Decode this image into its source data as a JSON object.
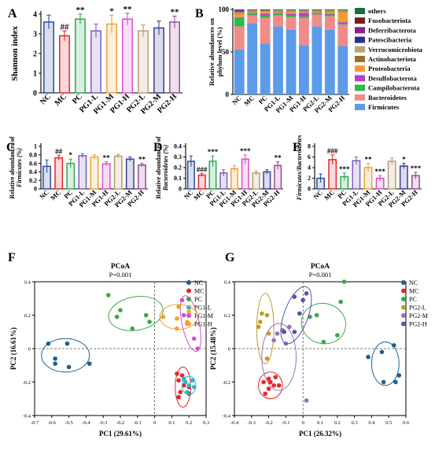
{
  "figure": {
    "panel_letters": [
      "A",
      "B",
      "C",
      "D",
      "E",
      "F",
      "G"
    ]
  },
  "groups": [
    "NC",
    "MC",
    "PC",
    "PG1-L",
    "PG1-M",
    "PG1-H",
    "PG2-L",
    "PG2-M",
    "PG2-H"
  ],
  "group_colors": {
    "NC": "#2b4f9e",
    "MC": "#e8262a",
    "PC": "#2fa84f",
    "PG1-L": "#7c5cbf",
    "PG1-M": "#e8a33b",
    "PG1-H": "#d84fc9",
    "PG2-L": "#b89a74",
    "PG2-M": "#3b3f8f",
    "PG2-H": "#9b4d96"
  },
  "chart_data": [
    {
      "id": "A",
      "type": "bar",
      "categories": [
        "NC",
        "MC",
        "PC",
        "PG1-L",
        "PG1-M",
        "PG1-H",
        "PG2-L",
        "PG2-M",
        "PG2-H"
      ],
      "values": [
        3.6,
        2.9,
        3.75,
        3.15,
        3.5,
        3.75,
        3.15,
        3.3,
        3.6
      ],
      "errors": [
        0.35,
        0.25,
        0.25,
        0.35,
        0.45,
        0.3,
        0.3,
        0.35,
        0.3
      ],
      "significance": [
        "",
        "##",
        "**",
        "",
        "*",
        "**",
        "",
        "",
        "**"
      ],
      "ylabel": "Shannon index",
      "ylim": [
        0,
        4
      ],
      "yticks": [
        0,
        1,
        2,
        3,
        4
      ]
    },
    {
      "id": "B",
      "type": "stacked-bar",
      "categories": [
        "NC",
        "MC",
        "PC",
        "PG1-L",
        "PG1-M",
        "PG1-H",
        "PG2-L",
        "PG2-M",
        "PG2-H"
      ],
      "ylabel_lines": [
        "Relative abundances on",
        "phylum level (%)"
      ],
      "ylim": [
        0,
        100
      ],
      "yticks": [
        0,
        50,
        100
      ],
      "series": [
        {
          "name": "Firmicutes",
          "color": "#5b9bea",
          "values": [
            53,
            84,
            60,
            80,
            76,
            58,
            80,
            76,
            57
          ]
        },
        {
          "name": "Bacteroidetes",
          "color": "#f28a8a",
          "values": [
            27,
            9,
            30,
            13,
            15,
            32,
            14,
            16,
            25
          ]
        },
        {
          "name": "Campilobacterota",
          "color": "#2fb84c",
          "values": [
            10,
            2,
            3,
            2,
            2,
            2,
            1,
            2,
            1
          ]
        },
        {
          "name": "Desulfobacterota",
          "color": "#b53fcf",
          "values": [
            1,
            1,
            2,
            1,
            2,
            4,
            1,
            1,
            2
          ]
        },
        {
          "name": "Proteobacteria",
          "color": "#f29b35",
          "values": [
            4,
            1,
            3,
            1,
            2,
            1,
            1,
            2,
            12
          ]
        },
        {
          "name": "Actinobacteriota",
          "color": "#9e6e2e",
          "values": [
            1,
            1,
            1,
            1,
            1,
            1,
            1,
            1,
            1
          ]
        },
        {
          "name": "Verrucomicrobiota",
          "color": "#b9a47a",
          "values": [
            1,
            1,
            0,
            1,
            1,
            1,
            1,
            1,
            1
          ]
        },
        {
          "name": "Patescibacteria",
          "color": "#2d2f8f",
          "values": [
            1,
            0,
            0,
            0,
            0,
            0,
            0,
            0,
            0
          ]
        },
        {
          "name": "Deferribacterota",
          "color": "#8c1f8a",
          "values": [
            1,
            0,
            0,
            0,
            0,
            0,
            0,
            0,
            0
          ]
        },
        {
          "name": "Fusobacteriota",
          "color": "#7a1c1c",
          "values": [
            0,
            0,
            0,
            0,
            0,
            0,
            0,
            0,
            0
          ]
        },
        {
          "name": "others",
          "color": "#1f6b3a",
          "values": [
            1,
            1,
            1,
            1,
            1,
            1,
            1,
            1,
            1
          ]
        }
      ]
    },
    {
      "id": "C",
      "type": "bar",
      "categories": [
        "NC",
        "MC",
        "PC",
        "PG1-L",
        "PG1-M",
        "PG1-H",
        "PG2-L",
        "PG2-M",
        "PG2-H"
      ],
      "values": [
        0.53,
        0.73,
        0.6,
        0.78,
        0.75,
        0.59,
        0.77,
        0.7,
        0.56
      ],
      "errors": [
        0.15,
        0.06,
        0.1,
        0.05,
        0.05,
        0.05,
        0.04,
        0.05,
        0.04
      ],
      "significance": [
        "",
        "##",
        "*",
        "",
        "",
        "**",
        "",
        "",
        "**"
      ],
      "ylabel_lines": [
        "Relative abundances of",
        "Firmicutes (%)"
      ],
      "ylim": [
        0,
        1.0
      ],
      "yticks": [
        0,
        0.2,
        0.4,
        0.6,
        0.8,
        1.0
      ]
    },
    {
      "id": "D",
      "type": "bar",
      "categories": [
        "NC",
        "MC",
        "PC",
        "PG1-L",
        "PG1-M",
        "PG1-H",
        "PG2-L",
        "PG2-M",
        "PG2-H"
      ],
      "values": [
        0.26,
        0.13,
        0.26,
        0.15,
        0.19,
        0.28,
        0.15,
        0.16,
        0.22
      ],
      "errors": [
        0.05,
        0.015,
        0.05,
        0.03,
        0.03,
        0.04,
        0.02,
        0.02,
        0.035
      ],
      "significance": [
        "",
        "###",
        "***",
        "",
        "",
        "***",
        "",
        "",
        "**"
      ],
      "ylabel_lines": [
        "Relative abundances of",
        "Bacteroidetes (%)"
      ],
      "ylim": [
        0,
        0.4
      ],
      "yticks": [
        0,
        0.1,
        0.2,
        0.3,
        0.4
      ]
    },
    {
      "id": "E",
      "type": "bar",
      "categories": [
        "NC",
        "MC",
        "PC",
        "PG1-L",
        "PG1-M",
        "PG1-H",
        "PG2-L",
        "PG2-M",
        "PG2-H"
      ],
      "values": [
        2.0,
        5.5,
        2.3,
        5.3,
        4.0,
        2.0,
        5.2,
        4.3,
        2.5
      ],
      "errors": [
        0.8,
        0.9,
        0.7,
        0.7,
        0.8,
        0.5,
        0.6,
        0.5,
        0.6
      ],
      "significance": [
        "",
        "###",
        "***",
        "",
        "**",
        "***",
        "",
        "*",
        "***"
      ],
      "ylabel": "Firmicutes/Bacteroidetes",
      "ylim": [
        0,
        8
      ],
      "yticks": [
        0,
        2,
        4,
        6,
        8
      ]
    },
    {
      "id": "F",
      "type": "scatter",
      "title": "PCoA",
      "subtitle": "P=0.001",
      "xlabel": "PC1 (29.61%)",
      "ylabel": "PC2 (16.61%)",
      "xlim": [
        -0.7,
        0.3
      ],
      "ylim": [
        -0.4,
        0.4
      ],
      "xticks": [
        -0.7,
        -0.6,
        -0.5,
        -0.4,
        -0.3,
        -0.2,
        -0.1,
        0.0,
        0.1,
        0.2,
        0.3
      ],
      "yticks": [
        -0.4,
        -0.2,
        0.0,
        0.2,
        0.4
      ],
      "legend": "right",
      "series": [
        {
          "name": "NC",
          "color": "#1f5f8f",
          "points": [
            [
              -0.62,
              0.03
            ],
            [
              -0.58,
              -0.06
            ],
            [
              -0.58,
              -0.09
            ],
            [
              -0.5,
              -0.11
            ],
            [
              -0.51,
              0.03
            ],
            [
              -0.38,
              -0.09
            ]
          ],
          "ellipse": {
            "cx": -0.52,
            "cy": -0.04,
            "rx": 0.14,
            "ry": 0.1,
            "angle": 0
          }
        },
        {
          "name": "MC",
          "color": "#e8262a",
          "points": [
            [
              0.13,
              -0.15
            ],
            [
              0.14,
              -0.19
            ],
            [
              0.15,
              -0.26
            ],
            [
              0.17,
              -0.22
            ],
            [
              0.14,
              -0.29
            ],
            [
              0.2,
              -0.27
            ],
            [
              0.2,
              -0.23
            ],
            [
              0.16,
              -0.16
            ]
          ],
          "ellipse": {
            "cx": 0.165,
            "cy": -0.23,
            "rx": 0.045,
            "ry": 0.12,
            "angle": 0
          }
        },
        {
          "name": "PC",
          "color": "#3aa84a",
          "points": [
            [
              -0.27,
              0.32
            ],
            [
              -0.22,
              0.19
            ],
            [
              -0.2,
              0.23
            ],
            [
              -0.05,
              0.2
            ],
            [
              -0.03,
              0.16
            ],
            [
              -0.13,
              0.12
            ]
          ],
          "ellipse": {
            "cx": -0.11,
            "cy": 0.21,
            "rx": 0.16,
            "ry": 0.1,
            "angle": -10
          }
        },
        {
          "name": "PG1-L",
          "color": "#30b4c8",
          "points": [
            [
              0.17,
              -0.18
            ],
            [
              0.2,
              -0.22
            ],
            [
              0.22,
              -0.19
            ],
            [
              0.19,
              -0.26
            ],
            [
              0.23,
              -0.23
            ],
            [
              0.18,
              -0.2
            ]
          ],
          "ellipse": {
            "cx": 0.2,
            "cy": -0.22,
            "rx": 0.04,
            "ry": 0.055,
            "angle": 0
          }
        },
        {
          "name": "PG1-M",
          "color": "#d64fd0",
          "points": [
            [
              0.16,
              0.29
            ],
            [
              0.17,
              0.2
            ],
            [
              0.2,
              0.2
            ],
            [
              0.19,
              0.15
            ],
            [
              0.23,
              0.06
            ],
            [
              0.25,
              0.0
            ]
          ],
          "ellipse": {
            "cx": 0.21,
            "cy": 0.15,
            "rx": 0.05,
            "ry": 0.17,
            "angle": -12
          }
        },
        {
          "name": "PG1-H",
          "color": "#f0a425",
          "points": [
            [
              0.05,
              0.19
            ],
            [
              0.13,
              0.18
            ],
            [
              0.14,
              0.25
            ],
            [
              0.19,
              0.16
            ],
            [
              0.13,
              0.12
            ],
            [
              0.2,
              0.22
            ]
          ],
          "ellipse": {
            "cx": 0.14,
            "cy": 0.19,
            "rx": 0.11,
            "ry": 0.075,
            "angle": 0
          }
        }
      ]
    },
    {
      "id": "G",
      "type": "scatter",
      "title": "PCoA",
      "subtitle": "P=0.001",
      "xlabel": "PC1 (26.32%)",
      "ylabel": "PC2 (15.48%)",
      "xlim": [
        -0.4,
        0.6
      ],
      "ylim": [
        -0.4,
        0.4
      ],
      "xticks": [
        -0.4,
        -0.3,
        -0.2,
        -0.1,
        0.0,
        0.1,
        0.2,
        0.3,
        0.4,
        0.5,
        0.6
      ],
      "yticks": [
        -0.4,
        -0.2,
        0.0,
        0.2,
        0.4
      ],
      "legend": "right",
      "series": [
        {
          "name": "NC",
          "color": "#1f5f8f",
          "points": [
            [
              0.38,
              -0.05
            ],
            [
              0.46,
              -0.02
            ],
            [
              0.47,
              -0.2
            ],
            [
              0.53,
              0.02
            ],
            [
              0.54,
              -0.2
            ],
            [
              0.56,
              -0.16
            ]
          ],
          "ellipse": {
            "cx": 0.48,
            "cy": -0.09,
            "rx": 0.08,
            "ry": 0.13,
            "angle": 0
          }
        },
        {
          "name": "MC",
          "color": "#e8262a",
          "points": [
            [
              -0.23,
              -0.2
            ],
            [
              -0.19,
              -0.2
            ],
            [
              -0.2,
              -0.24
            ],
            [
              -0.16,
              -0.17
            ],
            [
              -0.14,
              -0.22
            ],
            [
              -0.2,
              -0.18
            ],
            [
              -0.22,
              -0.27
            ],
            [
              -0.17,
              -0.22
            ]
          ],
          "ellipse": {
            "cx": -0.19,
            "cy": -0.22,
            "rx": 0.07,
            "ry": 0.08,
            "angle": 0
          }
        },
        {
          "name": "PC",
          "color": "#3aa84a",
          "points": [
            [
              0.04,
              0.19
            ],
            [
              0.08,
              0.2
            ],
            [
              0.22,
              0.28
            ],
            [
              0.24,
              0.4
            ],
            [
              0.2,
              0.08
            ],
            [
              0.12,
              0.04
            ]
          ],
          "ellipse": {
            "cx": 0.12,
            "cy": 0.15,
            "rx": 0.13,
            "ry": 0.12,
            "angle": 15
          }
        },
        {
          "name": "PG2-L",
          "color": "#c09a2a",
          "points": [
            [
              -0.24,
              0.21
            ],
            [
              -0.26,
              0.13
            ],
            [
              -0.2,
              0.09
            ],
            [
              -0.21,
              0.2
            ],
            [
              -0.25,
              0.16
            ],
            [
              -0.21,
              -0.06
            ]
          ],
          "ellipse": {
            "cx": -0.22,
            "cy": 0.12,
            "rx": 0.05,
            "ry": 0.21,
            "angle": 0
          }
        },
        {
          "name": "PG2-M",
          "color": "#9b6fb8",
          "points": [
            [
              -0.17,
              0.05
            ],
            [
              -0.15,
              0.09
            ],
            [
              -0.12,
              0.11
            ],
            [
              -0.08,
              0.13
            ],
            [
              -0.1,
              0.03
            ],
            [
              0.02,
              -0.31
            ]
          ],
          "ellipse": {
            "cx": -0.14,
            "cy": -0.05,
            "rx": 0.1,
            "ry": 0.2,
            "angle": 0
          }
        },
        {
          "name": "PG2-H",
          "color": "#5a4fb0",
          "points": [
            [
              -0.11,
              0.1
            ],
            [
              -0.05,
              0.1
            ],
            [
              0.0,
              0.29
            ],
            [
              0.02,
              0.33
            ],
            [
              -0.05,
              0.31
            ],
            [
              -0.02,
              0.21
            ]
          ],
          "ellipse": {
            "cx": -0.04,
            "cy": 0.2,
            "rx": 0.07,
            "ry": 0.18,
            "angle": 20
          }
        }
      ]
    }
  ]
}
